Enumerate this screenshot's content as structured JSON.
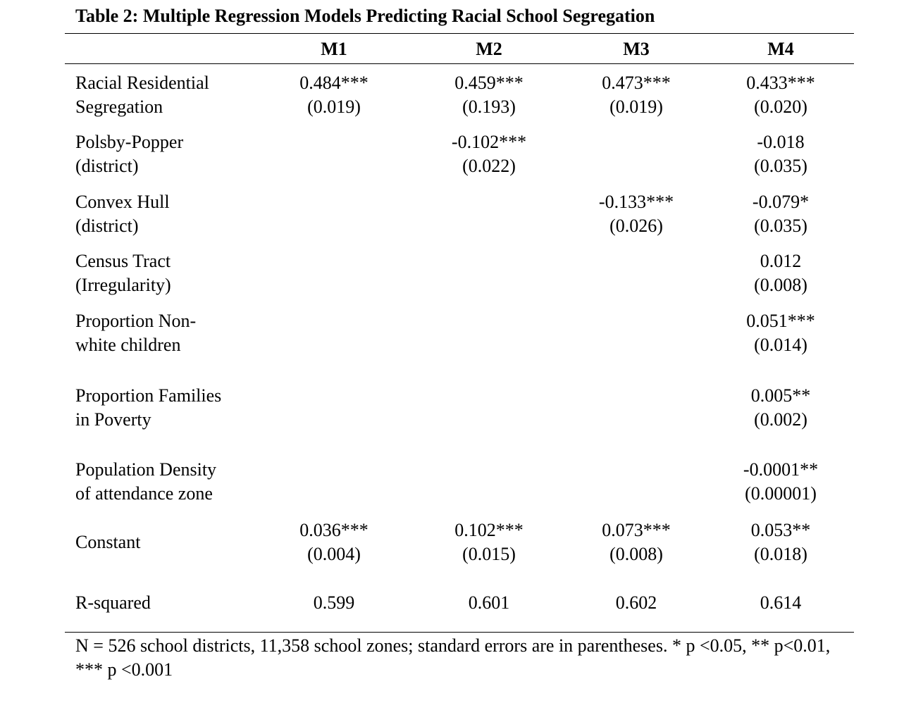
{
  "table": {
    "title": "Table 2: Multiple Regression Models Predicting Racial School Segregation",
    "columns": [
      "M1",
      "M2",
      "M3",
      "M4"
    ],
    "rows": [
      {
        "label_line1": "Racial Residential",
        "label_line2": "Segregation",
        "cells": [
          {
            "coef": "0.484***",
            "se": "(0.019)"
          },
          {
            "coef": "0.459***",
            "se": "(0.193)"
          },
          {
            "coef": "0.473***",
            "se": "(0.019)"
          },
          {
            "coef": "0.433***",
            "se": "(0.020)"
          }
        ]
      },
      {
        "label_line1": "Polsby-Popper",
        "label_line2": "(district)",
        "cells": [
          {
            "coef": "",
            "se": ""
          },
          {
            "coef": "-0.102***",
            "se": "(0.022)"
          },
          {
            "coef": "",
            "se": ""
          },
          {
            "coef": "-0.018",
            "se": "(0.035)"
          }
        ]
      },
      {
        "label_line1": "Convex Hull",
        "label_line2": "(district)",
        "cells": [
          {
            "coef": "",
            "se": ""
          },
          {
            "coef": "",
            "se": ""
          },
          {
            "coef": "-0.133***",
            "se": "(0.026)"
          },
          {
            "coef": "-0.079*",
            "se": "(0.035)"
          }
        ]
      },
      {
        "label_line1": "Census Tract",
        "label_line2": "(Irregularity)",
        "cells": [
          {
            "coef": "",
            "se": ""
          },
          {
            "coef": "",
            "se": ""
          },
          {
            "coef": "",
            "se": ""
          },
          {
            "coef": "0.012",
            "se": "(0.008)"
          }
        ]
      },
      {
        "label_line1": "Proportion Non-",
        "label_line2": "white children",
        "cells": [
          {
            "coef": "",
            "se": ""
          },
          {
            "coef": "",
            "se": ""
          },
          {
            "coef": "",
            "se": ""
          },
          {
            "coef": "0.051***",
            "se": "(0.014)"
          }
        ]
      },
      {
        "label_line1": "Proportion Families",
        "label_line2": "in Poverty",
        "cells": [
          {
            "coef": "",
            "se": ""
          },
          {
            "coef": "",
            "se": ""
          },
          {
            "coef": "",
            "se": ""
          },
          {
            "coef": "0.005**",
            "se": "(0.002)"
          }
        ]
      },
      {
        "label_line1": "Population Density",
        "label_line2": "of attendance zone",
        "cells": [
          {
            "coef": "",
            "se": ""
          },
          {
            "coef": "",
            "se": ""
          },
          {
            "coef": "",
            "se": ""
          },
          {
            "coef": "-0.0001**",
            "se": "(0.00001)"
          }
        ]
      },
      {
        "label_line1": "Constant",
        "label_line2": "",
        "cells": [
          {
            "coef": "0.036***",
            "se": "(0.004)"
          },
          {
            "coef": "0.102***",
            "se": "(0.015)"
          },
          {
            "coef": "0.073***",
            "se": "(0.008)"
          },
          {
            "coef": "0.053**",
            "se": "(0.018)"
          }
        ]
      },
      {
        "label_line1": "R-squared",
        "label_line2": "",
        "cells": [
          {
            "coef": "0.599",
            "se": ""
          },
          {
            "coef": "0.601",
            "se": ""
          },
          {
            "coef": "0.602",
            "se": ""
          },
          {
            "coef": "0.614",
            "se": ""
          }
        ]
      }
    ],
    "note": "N = 526 school districts, 11,358 school zones; standard errors are in parentheses. * p <0.05, ** p<0.01, *** p <0.001"
  }
}
